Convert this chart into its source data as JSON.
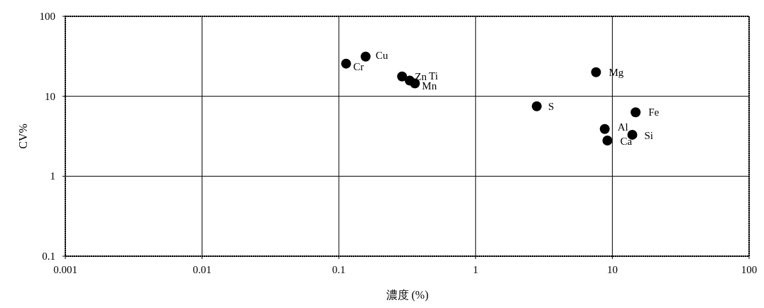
{
  "chart_data": {
    "type": "scatter",
    "xlabel": "濃度 (%)",
    "ylabel": "CV%",
    "log": "xy",
    "grid": true,
    "marker": "circle",
    "xlim": [
      0.001,
      100
    ],
    "xticks": [
      0.001,
      0.01,
      0.1,
      1,
      10,
      100
    ],
    "ylim": [
      0.1,
      100
    ],
    "yticks": [
      0.1,
      1,
      10,
      100
    ],
    "series": [
      {
        "color": "#000000",
        "x": [
          0.113,
          0.157,
          0.29,
          0.33,
          0.36,
          2.8,
          7.6,
          14.8,
          8.8,
          9.2,
          14
        ],
        "values": [
          25.6,
          31.4,
          17.7,
          15.7,
          14.5,
          7.5,
          20,
          6.3,
          3.9,
          2.8,
          3.3
        ]
      }
    ],
    "annotations": [
      {
        "text": "Cr",
        "x": 0.113,
        "y": 25.6
      },
      {
        "text": "Cu",
        "x": 0.157,
        "y": 31.4
      },
      {
        "text": "Zn",
        "x": 0.29,
        "y": 17.7
      },
      {
        "text": "Ti",
        "x": 0.33,
        "y": 15.7
      },
      {
        "text": "Mn",
        "x": 0.36,
        "y": 14.5
      },
      {
        "text": "S",
        "x": 2.8,
        "y": 7.5
      },
      {
        "text": "Mg",
        "x": 7.6,
        "y": 20
      },
      {
        "text": "Fe",
        "x": 14.8,
        "y": 6.3
      },
      {
        "text": "Al",
        "x": 8.8,
        "y": 3.9
      },
      {
        "text": "Ca",
        "x": 9.2,
        "y": 2.8
      },
      {
        "text": "Si",
        "x": 14,
        "y": 3.3
      }
    ]
  }
}
